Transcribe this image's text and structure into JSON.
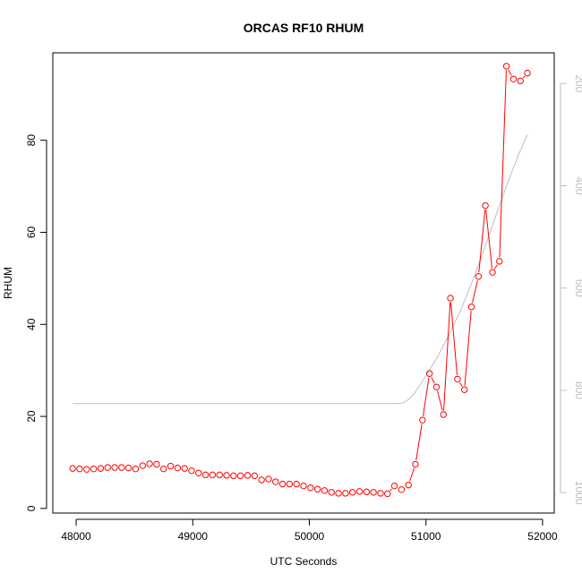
{
  "chart_data": {
    "type": "line",
    "title": "ORCAS RF10 RHUM",
    "xlabel": "UTC Seconds",
    "ylabel": "RHUM",
    "xlim": [
      47800,
      52100
    ],
    "ylim": [
      -1,
      99
    ],
    "x_ticks": [
      48000,
      49000,
      50000,
      51000,
      52000
    ],
    "y_ticks": [
      0,
      20,
      40,
      60,
      80
    ],
    "y2_lim": [
      1040,
      140
    ],
    "y2_ticks": [
      200,
      400,
      600,
      800,
      1000
    ],
    "y2_reversed": true,
    "grid": false,
    "legend": "none",
    "colors": {
      "series": "#ff0000",
      "secondary": "#bebebe",
      "axis": "#000000",
      "right_axis": "#bebebe"
    },
    "series": [
      {
        "role": "primary",
        "style": "points-and-lines",
        "x": [
          47970,
          48030,
          48090,
          48150,
          48210,
          48270,
          48330,
          48390,
          48450,
          48510,
          48570,
          48630,
          48690,
          48750,
          48810,
          48870,
          48930,
          48990,
          49050,
          49110,
          49170,
          49230,
          49290,
          49350,
          49410,
          49470,
          49530,
          49590,
          49650,
          49710,
          49770,
          49830,
          49890,
          49950,
          50010,
          50070,
          50130,
          50190,
          50250,
          50310,
          50370,
          50430,
          50490,
          50550,
          50610,
          50670,
          50730,
          50790,
          50850,
          50910,
          50970,
          51030,
          51090,
          51150,
          51210,
          51270,
          51330,
          51390,
          51450,
          51510,
          51570,
          51630,
          51690,
          51750,
          51810,
          51870
        ],
        "y": [
          8.7,
          8.6,
          8.5,
          8.6,
          8.7,
          8.9,
          8.9,
          8.9,
          8.8,
          8.6,
          9.3,
          9.7,
          9.6,
          8.6,
          9.2,
          8.8,
          8.7,
          8.2,
          7.7,
          7.3,
          7.3,
          7.3,
          7.2,
          7.1,
          7.1,
          7.2,
          7.1,
          6.2,
          6.4,
          5.8,
          5.3,
          5.3,
          5.3,
          4.9,
          4.5,
          4.2,
          3.9,
          3.5,
          3.3,
          3.3,
          3.5,
          3.7,
          3.6,
          3.5,
          3.3,
          3.2,
          4.9,
          4.1,
          5.1,
          9.6,
          19.2,
          29.3,
          26.4,
          20.4,
          45.7,
          28.1,
          25.8,
          43.8,
          50.4,
          65.8,
          51.3,
          53.7,
          96.1,
          93.3,
          92.9,
          94.6
        ]
      },
      {
        "role": "secondary",
        "axis": "right",
        "style": "line",
        "x": [
          47970,
          48500,
          49000,
          49500,
          50000,
          50500,
          50750,
          50800,
          50850,
          50900,
          51000,
          51100,
          51200,
          51300,
          51400,
          51500,
          51600,
          51700,
          51800,
          51870
        ],
        "y": [
          826,
          826,
          826,
          826,
          826,
          826,
          826,
          825,
          818,
          806,
          772,
          734,
          690,
          642,
          586,
          524,
          458,
          394,
          336,
          300
        ]
      }
    ]
  }
}
